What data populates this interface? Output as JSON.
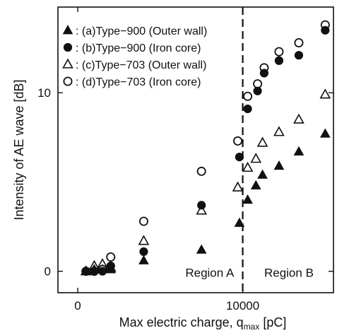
{
  "chart_data": {
    "type": "scatter",
    "xlabel_main": "Max electric charge, q",
    "xlabel_sub": "max",
    "xlabel_unit": " [pC]",
    "ylabel": "Intensity of AE wave [dB]",
    "xlim": [
      -1200,
      15500
    ],
    "ylim": [
      -1.2,
      14.8
    ],
    "x_ticks": [
      {
        "value": 0,
        "label": "0"
      },
      {
        "value": 10000,
        "label": "10000"
      }
    ],
    "y_ticks": [
      {
        "value": 0,
        "label": "0"
      },
      {
        "value": 10,
        "label": "10"
      }
    ],
    "divider_x": 10000,
    "regions": [
      {
        "label": "Region A",
        "x": 8000,
        "y": -0.3
      },
      {
        "label": "Region B",
        "x": 12800,
        "y": -0.3
      }
    ],
    "legend_position": "top-left",
    "series": [
      {
        "name": "(a)Type−900 (Outer wall)",
        "marker": "triangle-filled",
        "points": [
          [
            500,
            0
          ],
          [
            1000,
            0.1
          ],
          [
            1500,
            0.1
          ],
          [
            2000,
            0.1
          ],
          [
            4000,
            0.6
          ],
          [
            7500,
            1.2
          ],
          [
            9800,
            2.7
          ],
          [
            10300,
            4.0
          ],
          [
            10800,
            4.8
          ],
          [
            11200,
            5.4
          ],
          [
            12200,
            5.9
          ],
          [
            13400,
            6.7
          ],
          [
            15000,
            7.7
          ]
        ]
      },
      {
        "name": "(b)Type−900 (Iron core)",
        "marker": "circle-filled",
        "points": [
          [
            500,
            0
          ],
          [
            1000,
            0
          ],
          [
            1500,
            0
          ],
          [
            2000,
            0.3
          ],
          [
            4000,
            1.1
          ],
          [
            7500,
            3.7
          ],
          [
            9800,
            6.4
          ],
          [
            10300,
            9.1
          ],
          [
            10900,
            10.1
          ],
          [
            11300,
            11.1
          ],
          [
            12200,
            11.8
          ],
          [
            13400,
            12.1
          ],
          [
            15000,
            13.5
          ]
        ]
      },
      {
        "name": "(c)Type−703 (Outer wall)",
        "marker": "triangle-open",
        "points": [
          [
            500,
            0
          ],
          [
            1000,
            0.3
          ],
          [
            1500,
            0.4
          ],
          [
            2000,
            0.2
          ],
          [
            4000,
            1.7
          ],
          [
            7500,
            3.4
          ],
          [
            9700,
            4.7
          ],
          [
            10300,
            5.8
          ],
          [
            10800,
            6.3
          ],
          [
            11200,
            7.2
          ],
          [
            12200,
            7.8
          ],
          [
            13400,
            8.5
          ],
          [
            15000,
            9.9
          ]
        ]
      },
      {
        "name": "(d)Type−703 (Iron core)",
        "marker": "circle-open",
        "points": [
          [
            500,
            0
          ],
          [
            1000,
            0
          ],
          [
            1500,
            0.1
          ],
          [
            2000,
            0.8
          ],
          [
            4000,
            2.8
          ],
          [
            7500,
            5.6
          ],
          [
            9700,
            7.3
          ],
          [
            10300,
            9.8
          ],
          [
            10900,
            10.5
          ],
          [
            11300,
            11.4
          ],
          [
            12200,
            12.3
          ],
          [
            13400,
            12.8
          ],
          [
            15000,
            13.8
          ]
        ]
      }
    ]
  }
}
